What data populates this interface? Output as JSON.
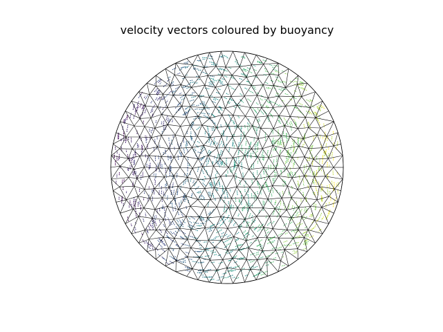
{
  "figure": {
    "title": "velocity vectors coloured by buoyancy"
  },
  "mesh": {
    "domain_shape": "circle",
    "element_type": "triangle",
    "edge_color": "#000000",
    "background": "#ffffff"
  },
  "vector_field": {
    "quantity": "velocity",
    "colour_by": "buoyancy",
    "colormap": "viridis",
    "colormap_stops": [
      "#440154",
      "#3b528b",
      "#21918c",
      "#5ec962",
      "#fde725"
    ]
  }
}
